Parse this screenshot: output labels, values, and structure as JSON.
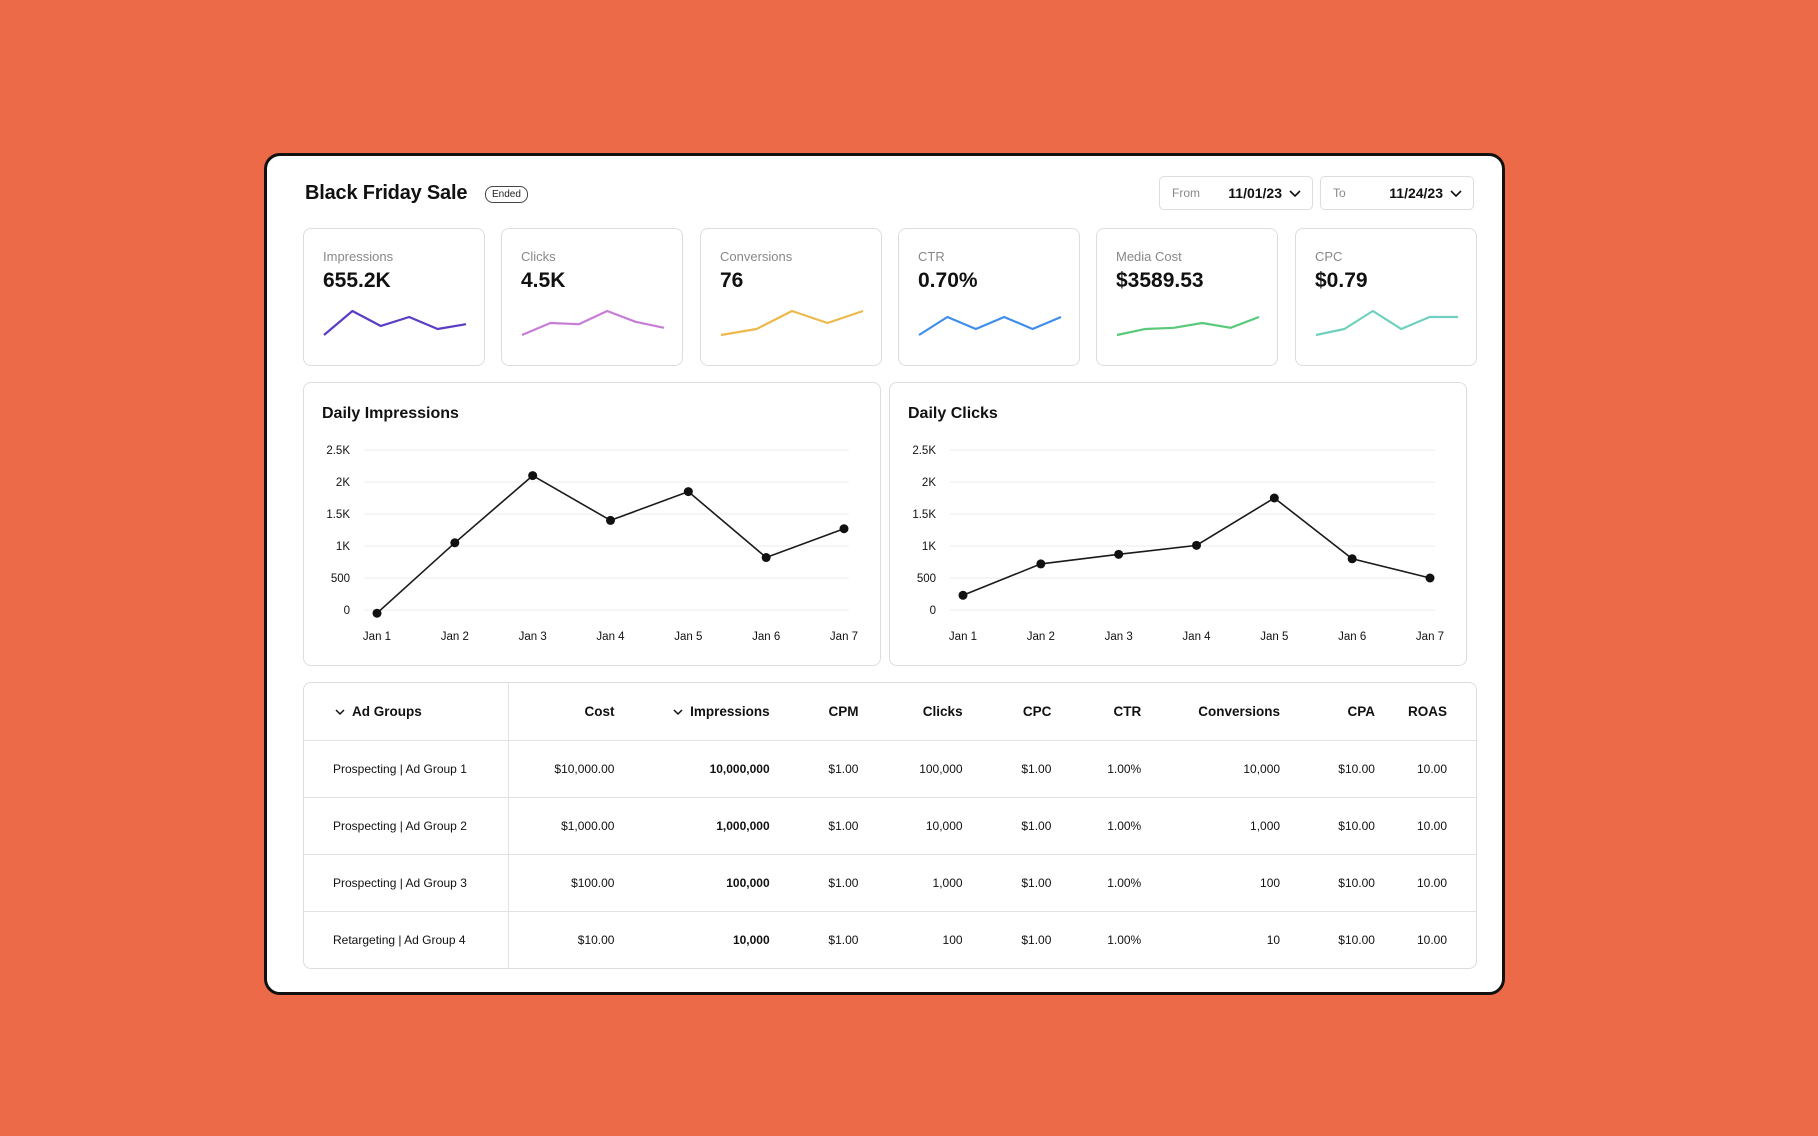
{
  "header": {
    "title": "Black Friday Sale",
    "badge": "Ended",
    "from_label": "From",
    "from_value": "11/01/23",
    "to_label": "To",
    "to_value": "11/24/23"
  },
  "kpis": [
    {
      "label": "Impressions",
      "value": "655.2K",
      "color": "#5B3CC4",
      "trend": [
        2,
        6,
        3.5,
        5,
        3,
        3.8
      ]
    },
    {
      "label": "Clicks",
      "value": "4.5K",
      "color": "#C77DD6",
      "trend": [
        2,
        4,
        3.8,
        6,
        4.2,
        3.2
      ]
    },
    {
      "label": "Conversions",
      "value": "76",
      "color": "#EDB84C",
      "trend": [
        2,
        3,
        6,
        4,
        6
      ]
    },
    {
      "label": "CTR",
      "value": "0.70%",
      "color": "#3F8EEA",
      "trend": [
        2,
        5,
        3,
        5,
        3,
        5
      ]
    },
    {
      "label": "Media Cost",
      "value": "$3589.53",
      "color": "#5BC97B",
      "trend": [
        2,
        3,
        3.2,
        4,
        3.2,
        5
      ]
    },
    {
      "label": "CPC",
      "value": "$0.79",
      "color": "#6FD0C0",
      "trend": [
        2,
        3,
        6,
        3,
        5,
        5
      ]
    }
  ],
  "chart_data": [
    {
      "type": "line",
      "title": "Daily Impressions",
      "categories": [
        "Jan 1",
        "Jan 2",
        "Jan 3",
        "Jan 4",
        "Jan 5",
        "Jan 6",
        "Jan 7"
      ],
      "values": [
        -50,
        1050,
        2100,
        1400,
        1850,
        820,
        1270
      ],
      "ylim": [
        0,
        2500
      ],
      "yticks": [
        "0",
        "500",
        "1K",
        "1.5K",
        "2K",
        "2.5K"
      ],
      "ytick_values": [
        0,
        500,
        1000,
        1500,
        2000,
        2500
      ],
      "grid": true
    },
    {
      "type": "line",
      "title": "Daily Clicks",
      "categories": [
        "Jan 1",
        "Jan 2",
        "Jan 3",
        "Jan 4",
        "Jan 5",
        "Jan 6",
        "Jan 7"
      ],
      "values": [
        230,
        720,
        870,
        1010,
        1750,
        800,
        500
      ],
      "ylim": [
        0,
        2500
      ],
      "yticks": [
        "0",
        "500",
        "1K",
        "1.5K",
        "2K",
        "2.5K"
      ],
      "ytick_values": [
        0,
        500,
        1000,
        1500,
        2000,
        2500
      ],
      "grid": true
    }
  ],
  "table": {
    "headers": [
      "Ad Groups",
      "Cost",
      "Impressions",
      "CPM",
      "Clicks",
      "CPC",
      "CTR",
      "Conversions",
      "CPA",
      "ROAS"
    ],
    "rows": [
      [
        "Prospecting | Ad Group 1",
        "$10,000.00",
        "10,000,000",
        "$1.00",
        "100,000",
        "$1.00",
        "1.00%",
        "10,000",
        "$10.00",
        "10.00"
      ],
      [
        "Prospecting | Ad Group 2",
        "$1,000.00",
        "1,000,000",
        "$1.00",
        "10,000",
        "$1.00",
        "1.00%",
        "1,000",
        "$10.00",
        "10.00"
      ],
      [
        "Prospecting | Ad Group 3",
        "$100.00",
        "100,000",
        "$1.00",
        "1,000",
        "$1.00",
        "1.00%",
        "100",
        "$10.00",
        "10.00"
      ],
      [
        "Retargeting | Ad Group 4",
        "$10.00",
        "10,000",
        "$1.00",
        "100",
        "$1.00",
        "1.00%",
        "10",
        "$10.00",
        "10.00"
      ]
    ]
  }
}
